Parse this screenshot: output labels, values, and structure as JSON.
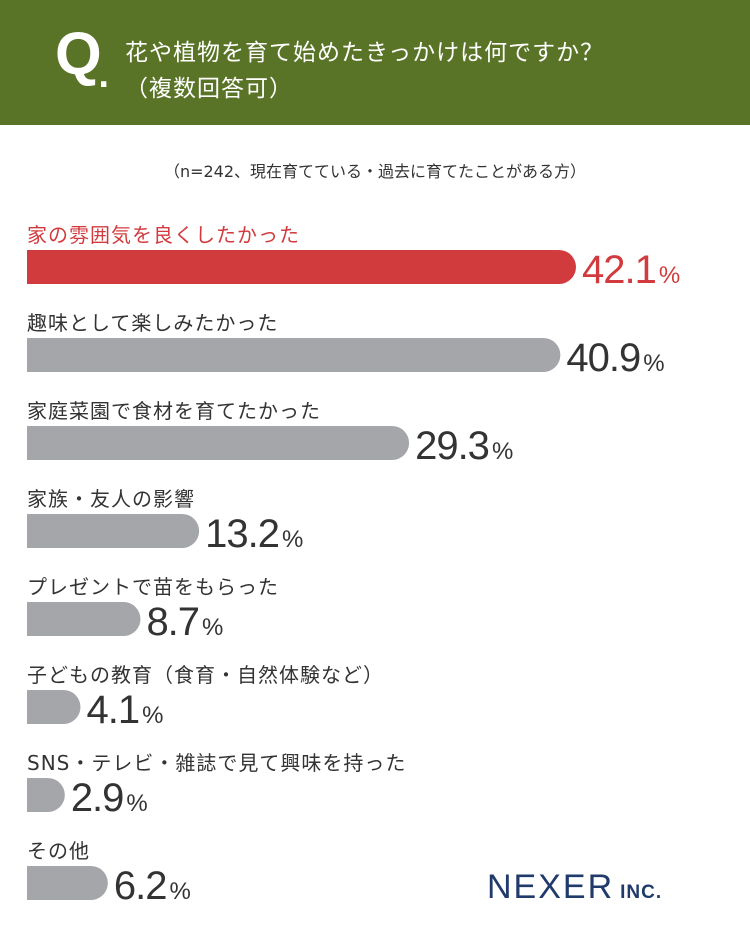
{
  "header": {
    "q": "Q",
    "dot": ".",
    "line1": "花や植物を育て始めたきっかけは何ですか？",
    "line2": "（複数回答可）"
  },
  "note": "（n=242、現在育てている・過去に育てたことがある方）",
  "logo": {
    "main": "NEXER",
    "sub": "INC."
  },
  "colors": {
    "header": "#5a7427",
    "highlight": "#d23b3e",
    "bar": "#a5a6aa",
    "text": "#333333",
    "logo": "#1f3a6b"
  },
  "chart_data": {
    "type": "bar",
    "orientation": "horizontal",
    "unit": "%",
    "categories": [
      "家の雰囲気を良くしたかった",
      "趣味として楽しみたかった",
      "家庭菜園で食材を育てたかった",
      "家族・友人の影響",
      "プレゼントで苗をもらった",
      "子どもの教育（食育・自然体験など）",
      "SNS・テレビ・雑誌で見て興味を持った",
      "その他"
    ],
    "values": [
      42.1,
      40.9,
      29.3,
      13.2,
      8.7,
      4.1,
      2.9,
      6.2
    ],
    "value_labels": [
      "42.1",
      "40.9",
      "29.3",
      "13.2",
      "8.7",
      "4.1",
      "2.9",
      "6.2"
    ],
    "highlight_index": 0,
    "xlim": [
      0,
      42.1
    ],
    "grid": false,
    "legend": "none"
  }
}
